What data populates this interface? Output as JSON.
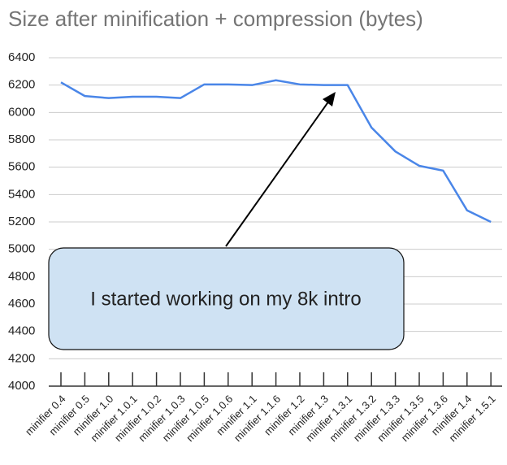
{
  "chart_data": {
    "type": "line",
    "title": "Size after minification + compression (bytes)",
    "categories": [
      "minifier 0.4",
      "minifier 0.5",
      "minifier 1.0",
      "minifier 1.0.1",
      "minifier 1.0.2",
      "minifier 1.0.3",
      "minifier 1.0.5",
      "minifier 1.0.6",
      "minifier 1.1",
      "minifier 1.1.6",
      "minifier 1.2",
      "minifier 1.3",
      "minifier 1.3.1",
      "minifier 1.3.2",
      "minifier 1.3.3",
      "minifier 1.3.5",
      "minifier 1.3.6",
      "minifier 1.4",
      "minifier 1.5.1"
    ],
    "values": [
      6220,
      6120,
      6105,
      6115,
      6115,
      6105,
      6205,
      6205,
      6200,
      6235,
      6205,
      6200,
      6200,
      5890,
      5715,
      5610,
      5575,
      5285,
      5200
    ],
    "color": "#4a86e8",
    "ylim": [
      4000,
      6400
    ],
    "yticks": [
      4000,
      4200,
      4400,
      4600,
      4800,
      5000,
      5200,
      5400,
      5600,
      5800,
      6000,
      6200,
      6400
    ],
    "grid": true,
    "annotation": "I started working on my 8k intro"
  }
}
